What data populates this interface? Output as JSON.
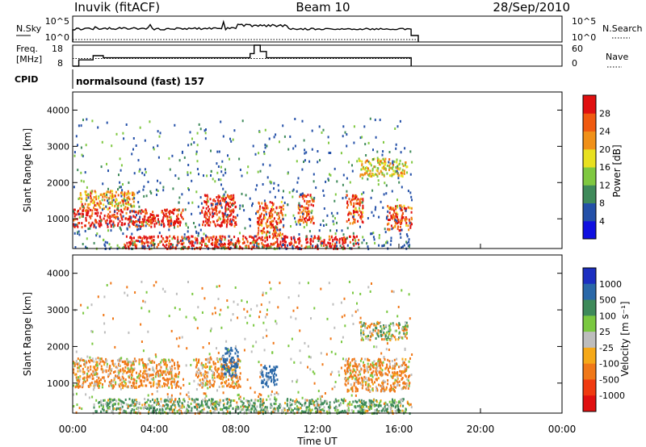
{
  "header": {
    "station": "Inuvik (fitACF)",
    "beam": "Beam 10",
    "date": "28/Sep/2010"
  },
  "nsky_panel": {
    "left_label": "N.Sky",
    "right_label": "N.Search",
    "left_ticks": [
      "10^5",
      "10^0"
    ],
    "right_ticks": [
      "10^5",
      "10^0"
    ]
  },
  "freq_panel": {
    "left_label_1": "Freq.",
    "left_label_2": "[MHz]",
    "right_label": "Nave",
    "left_ticks": [
      "18",
      "8"
    ],
    "right_ticks": [
      "60",
      "0"
    ]
  },
  "cpid": {
    "label": "CPID",
    "value": "normalsound (fast) 157"
  },
  "x_axis": {
    "label": "Time UT",
    "ticks": [
      "00:00",
      "04:00",
      "08:00",
      "12:00",
      "16:00",
      "20:00",
      "00:00"
    ]
  },
  "power_panel": {
    "ylabel": "Slant Range [km]",
    "yticks": [
      "1000",
      "2000",
      "3000",
      "4000"
    ],
    "cbar_label": "Power [dB]",
    "cbar_ticks": [
      "4",
      "8",
      "12",
      "16",
      "20",
      "24",
      "28"
    ],
    "cbar_colors": [
      "#1010e0",
      "#2450a8",
      "#3f8a5a",
      "#7fc840",
      "#e8e020",
      "#f09018",
      "#f05a10",
      "#e01010"
    ]
  },
  "velocity_panel": {
    "ylabel": "Slant Range [km]",
    "yticks": [
      "1000",
      "2000",
      "3000",
      "4000"
    ],
    "cbar_label": "Velocity [m s⁻¹]",
    "cbar_ticks": [
      "1000",
      "500",
      "100",
      "25",
      "-25",
      "-100",
      "-500",
      "-1000"
    ],
    "cbar_colors": [
      "#1c2fc0",
      "#2a68a8",
      "#3e8a5a",
      "#7ac840",
      "#bdbdbd",
      "#f5a818",
      "#f07818",
      "#f03a10",
      "#e01010"
    ]
  },
  "chart_data": {
    "type": "heatmap",
    "x_range_hours": [
      0,
      24
    ],
    "y_range_km": [
      180,
      4500
    ],
    "data_time_range_hours": [
      0,
      16.6
    ],
    "power_regions": [
      {
        "t0": 0.0,
        "t1": 5.4,
        "r0": 800,
        "r1": 1300,
        "level": 28
      },
      {
        "t0": 0.3,
        "t1": 3.0,
        "r0": 1300,
        "r1": 1800,
        "level": 20
      },
      {
        "t0": 6.3,
        "t1": 8.0,
        "r0": 800,
        "r1": 1700,
        "level": 28
      },
      {
        "t0": 9.0,
        "t1": 10.3,
        "r0": 500,
        "r1": 1500,
        "level": 24
      },
      {
        "t0": 2.5,
        "t1": 14.0,
        "r0": 200,
        "r1": 550,
        "level": 28
      },
      {
        "t0": 11.0,
        "t1": 11.8,
        "r0": 900,
        "r1": 1700,
        "level": 24
      },
      {
        "t0": 13.4,
        "t1": 14.2,
        "r0": 900,
        "r1": 1700,
        "level": 24
      },
      {
        "t0": 15.4,
        "t1": 16.6,
        "r0": 700,
        "r1": 1400,
        "level": 24
      },
      {
        "t0": 14.0,
        "t1": 16.4,
        "r0": 2200,
        "r1": 2700,
        "level": 16
      }
    ],
    "velocity_regions": [
      {
        "t0": 0.0,
        "t1": 5.2,
        "r0": 900,
        "r1": 1700,
        "value": -100
      },
      {
        "t0": 6.0,
        "t1": 8.2,
        "r0": 900,
        "r1": 1700,
        "value": -100
      },
      {
        "t0": 7.3,
        "t1": 8.1,
        "r0": 1200,
        "r1": 2000,
        "value": 500
      },
      {
        "t0": 9.2,
        "t1": 10.0,
        "r0": 900,
        "r1": 1500,
        "value": 500
      },
      {
        "t0": 13.3,
        "t1": 16.5,
        "r0": 800,
        "r1": 1700,
        "value": -100
      },
      {
        "t0": 14.1,
        "t1": 16.4,
        "r0": 2200,
        "r1": 2700,
        "value": 0
      },
      {
        "t0": 1.0,
        "t1": 16.5,
        "r0": 200,
        "r1": 600,
        "value": 100
      }
    ],
    "nsky_level": 3,
    "freq_levels": [
      {
        "t0": 0.0,
        "t1": 0.3,
        "value": 8
      },
      {
        "t0": 0.3,
        "t1": 1.0,
        "value": 11
      },
      {
        "t0": 1.0,
        "t1": 1.5,
        "value": 13
      },
      {
        "t0": 1.5,
        "t1": 8.7,
        "value": 12
      },
      {
        "t0": 8.7,
        "t1": 8.9,
        "value": 14
      },
      {
        "t0": 8.9,
        "t1": 9.2,
        "value": 18
      },
      {
        "t0": 9.2,
        "t1": 9.5,
        "value": 15
      },
      {
        "t0": 9.5,
        "t1": 16.6,
        "value": 12
      }
    ],
    "nave_level": 22
  }
}
